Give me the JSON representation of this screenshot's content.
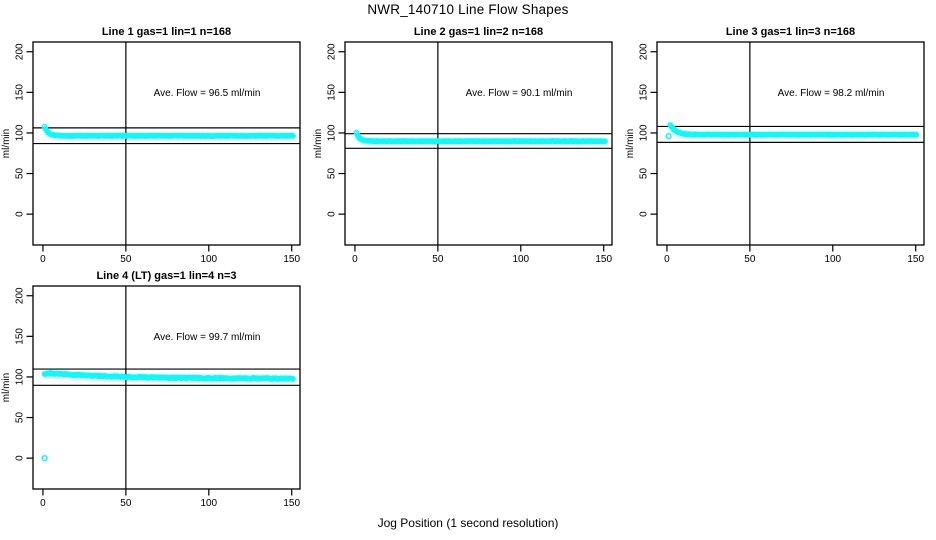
{
  "figure": {
    "title": "NWR_140710  Line Flow Shapes",
    "xlabel": "Jog Position (1 second resolution)",
    "ylabel": "ml/min",
    "background_color": "#FFFFFF",
    "axis_color": "#000000",
    "point_color": "#00FFFF"
  },
  "chart_data": [
    {
      "type": "scatter",
      "title": "Line 1 gas=1 lin=1 n=168",
      "annotation": "Ave. Flow =  96.5  ml/min",
      "ave_flow_ml_min": 96.5,
      "n": 168,
      "xlim": [
        -6,
        155
      ],
      "ylim": [
        -38,
        212
      ],
      "x_ticks": [
        0,
        50,
        100,
        150
      ],
      "y_ticks": [
        0,
        50,
        100,
        150,
        200
      ],
      "vline_x": 50,
      "hlines": [
        106.2,
        86.9
      ],
      "series": [
        {
          "name": "flow-trace",
          "jitter": 0.5,
          "points": [
            [
              1,
              107.4
            ],
            [
              2,
              103.4
            ],
            [
              3,
              100.8
            ],
            [
              4,
              99.2
            ],
            [
              5,
              98.2
            ],
            [
              6,
              97.5
            ],
            [
              7,
              97.1
            ],
            [
              8,
              96.9
            ],
            [
              10,
              96.6
            ],
            [
              12,
              96.5
            ],
            [
              15,
              96.4
            ],
            [
              20,
              96.4
            ],
            [
              30,
              96.4
            ],
            [
              40,
              96.4
            ],
            [
              50,
              96.4
            ],
            [
              60,
              96.4
            ],
            [
              70,
              96.4
            ],
            [
              80,
              96.4
            ],
            [
              90,
              96.4
            ],
            [
              100,
              96.4
            ],
            [
              110,
              96.4
            ],
            [
              120,
              96.4
            ],
            [
              130,
              96.4
            ],
            [
              140,
              96.4
            ],
            [
              151,
              96.3
            ]
          ]
        }
      ],
      "outliers": []
    },
    {
      "type": "scatter",
      "title": "Line 2 gas=1 lin=2 n=168",
      "annotation": "Ave. Flow =  90.1  ml/min",
      "ave_flow_ml_min": 90.1,
      "n": 168,
      "xlim": [
        -6,
        155
      ],
      "ylim": [
        -38,
        212
      ],
      "x_ticks": [
        0,
        50,
        100,
        150
      ],
      "y_ticks": [
        0,
        50,
        100,
        150,
        200
      ],
      "vline_x": 50,
      "hlines": [
        99.1,
        81.1
      ],
      "series": [
        {
          "name": "flow-trace",
          "jitter": 0.5,
          "points": [
            [
              1,
              100.3
            ],
            [
              2,
              95.9
            ],
            [
              3,
              93.3
            ],
            [
              4,
              91.8
            ],
            [
              5,
              91.0
            ],
            [
              6,
              90.5
            ],
            [
              7,
              90.2
            ],
            [
              8,
              90.1
            ],
            [
              10,
              90.0
            ],
            [
              12,
              89.9
            ],
            [
              15,
              89.9
            ],
            [
              20,
              89.9
            ],
            [
              30,
              89.9
            ],
            [
              40,
              89.9
            ],
            [
              50,
              89.9
            ],
            [
              60,
              89.9
            ],
            [
              70,
              89.9
            ],
            [
              80,
              89.9
            ],
            [
              90,
              89.9
            ],
            [
              100,
              89.9
            ],
            [
              110,
              89.9
            ],
            [
              120,
              89.9
            ],
            [
              130,
              89.9
            ],
            [
              140,
              89.9
            ],
            [
              151,
              89.8
            ]
          ]
        }
      ],
      "outliers": []
    },
    {
      "type": "scatter",
      "title": "Line 3 gas=1 lin=3 n=168",
      "annotation": "Ave. Flow =  98.2  ml/min",
      "ave_flow_ml_min": 98.2,
      "n": 168,
      "xlim": [
        -6,
        155
      ],
      "ylim": [
        -38,
        212
      ],
      "x_ticks": [
        0,
        50,
        100,
        150
      ],
      "y_ticks": [
        0,
        50,
        100,
        150,
        200
      ],
      "vline_x": 50,
      "hlines": [
        108.0,
        88.4
      ],
      "series": [
        {
          "name": "flow-trace",
          "jitter": 0.5,
          "points": [
            [
              2,
              109.9
            ],
            [
              3,
              107.0
            ],
            [
              4,
              104.8
            ],
            [
              5,
              103.1
            ],
            [
              6,
              101.8
            ],
            [
              7,
              100.8
            ],
            [
              8,
              100.0
            ],
            [
              10,
              99.0
            ],
            [
              12,
              98.5
            ],
            [
              15,
              98.1
            ],
            [
              20,
              98.0
            ],
            [
              30,
              97.9
            ],
            [
              40,
              97.9
            ],
            [
              50,
              97.9
            ],
            [
              60,
              97.9
            ],
            [
              70,
              97.9
            ],
            [
              80,
              97.9
            ],
            [
              90,
              97.9
            ],
            [
              100,
              97.9
            ],
            [
              110,
              97.9
            ],
            [
              120,
              97.9
            ],
            [
              130,
              97.9
            ],
            [
              140,
              97.9
            ],
            [
              151,
              97.9
            ]
          ]
        }
      ],
      "outliers": [
        [
          1,
          96.0
        ]
      ]
    },
    {
      "type": "scatter",
      "title": "Line 4 (LT) gas=1 lin=4 n=3",
      "annotation": "Ave. Flow =  99.7  ml/min",
      "ave_flow_ml_min": 99.7,
      "n": 3,
      "xlim": [
        -6,
        155
      ],
      "ylim": [
        -38,
        212
      ],
      "x_ticks": [
        0,
        50,
        100,
        150
      ],
      "y_ticks": [
        0,
        50,
        100,
        150,
        200
      ],
      "vline_x": 50,
      "hlines": [
        109.7,
        89.7
      ],
      "series": [
        {
          "name": "flow-trace",
          "jitter": 1.2,
          "points": [
            [
              1,
              103.5
            ],
            [
              2,
              104.2
            ],
            [
              3,
              104.6
            ],
            [
              5,
              104.6
            ],
            [
              8,
              104.1
            ],
            [
              10,
              103.7
            ],
            [
              15,
              103.0
            ],
            [
              20,
              102.4
            ],
            [
              25,
              101.9
            ],
            [
              30,
              101.5
            ],
            [
              40,
              100.8
            ],
            [
              50,
              100.1
            ],
            [
              60,
              99.6
            ],
            [
              70,
              99.2
            ],
            [
              80,
              98.9
            ],
            [
              90,
              98.7
            ],
            [
              100,
              98.6
            ],
            [
              110,
              98.4
            ],
            [
              120,
              98.3
            ],
            [
              130,
              98.2
            ],
            [
              140,
              98.1
            ],
            [
              151,
              98.0
            ]
          ]
        }
      ],
      "outliers": [
        [
          1,
          0.0
        ]
      ]
    }
  ]
}
